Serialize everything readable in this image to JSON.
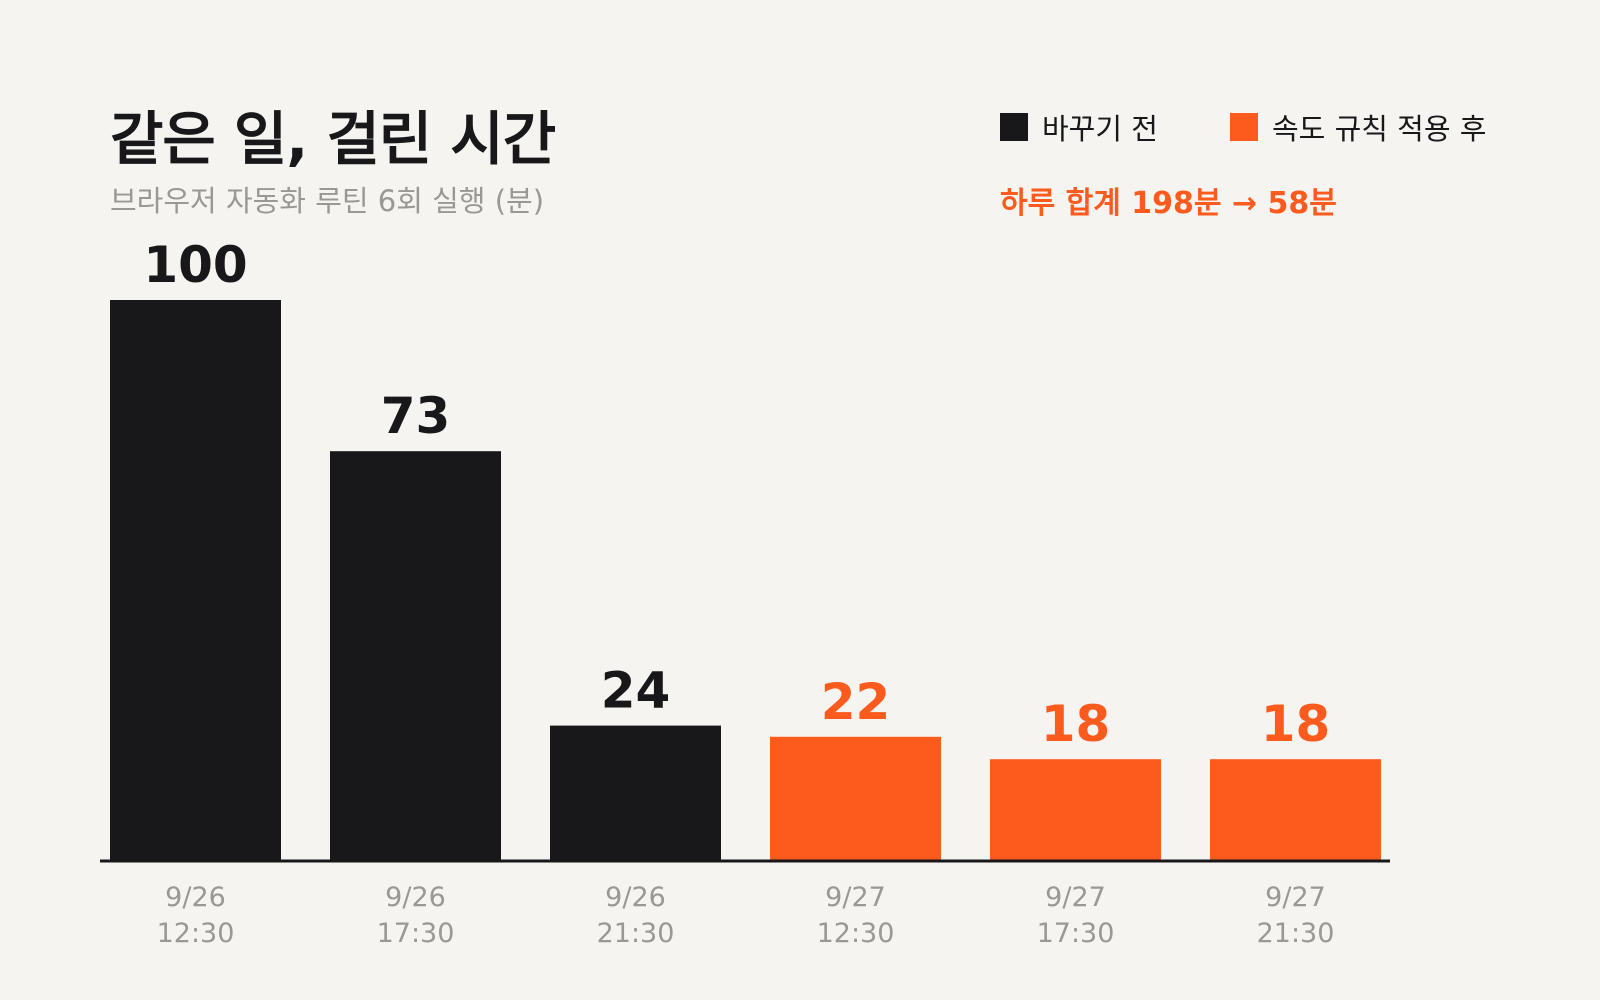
{
  "colors": {
    "before": "#18181b",
    "after": "#fd5a1e",
    "muted": "#9a9893",
    "background": "#f5f4f0"
  },
  "legend": {
    "before_label": "바꾸기 전",
    "after_label": "속도 규칙 적용 후"
  },
  "summary": "하루 합계 198분 → 58분",
  "chart_data": {
    "type": "bar",
    "title": "같은 일, 걸린 시간",
    "subtitle": "브라우저 자동화 루틴 6회 실행 (분)",
    "categories": [
      [
        "9/26",
        "12:30"
      ],
      [
        "9/26",
        "17:30"
      ],
      [
        "9/26",
        "21:30"
      ],
      [
        "9/27",
        "12:30"
      ],
      [
        "9/27",
        "17:30"
      ],
      [
        "9/27",
        "21:30"
      ]
    ],
    "values": [
      100,
      73,
      24,
      22,
      18,
      18
    ],
    "groups": [
      "before",
      "before",
      "before",
      "after",
      "after",
      "after"
    ],
    "ylim": [
      0,
      100
    ],
    "grid": false,
    "legend_position": "top-right"
  }
}
